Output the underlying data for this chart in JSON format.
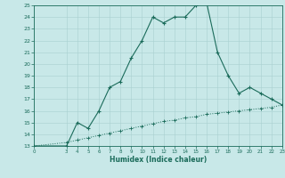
{
  "xlabel": "Humidex (Indice chaleur)",
  "background_color": "#c8e8e8",
  "grid_color": "#a8d0d0",
  "line_color": "#1a6b5a",
  "x_main": [
    0,
    3,
    4,
    5,
    6,
    7,
    8,
    9,
    10,
    11,
    12,
    13,
    14,
    15,
    16,
    17,
    18,
    19,
    20,
    21,
    22,
    23
  ],
  "y_main": [
    13,
    13,
    15,
    14.5,
    16,
    18,
    18.5,
    20.5,
    22,
    24,
    23.5,
    24,
    24,
    25,
    25.2,
    21,
    19,
    17.5,
    18,
    17.5,
    17,
    16.5
  ],
  "x_lower": [
    0,
    3,
    4,
    5,
    6,
    7,
    8,
    9,
    10,
    11,
    12,
    13,
    14,
    15,
    16,
    17,
    18,
    19,
    20,
    21,
    22,
    23
  ],
  "y_lower": [
    13,
    13.3,
    13.5,
    13.7,
    13.9,
    14.1,
    14.3,
    14.5,
    14.7,
    14.9,
    15.1,
    15.2,
    15.4,
    15.5,
    15.7,
    15.8,
    15.9,
    16.0,
    16.1,
    16.2,
    16.3,
    16.5
  ],
  "ylim": [
    13,
    25
  ],
  "xlim": [
    0,
    23
  ],
  "yticks": [
    13,
    14,
    15,
    16,
    17,
    18,
    19,
    20,
    21,
    22,
    23,
    24,
    25
  ],
  "xticks": [
    0,
    3,
    4,
    5,
    6,
    7,
    8,
    9,
    10,
    11,
    12,
    13,
    14,
    15,
    16,
    17,
    18,
    19,
    20,
    21,
    22,
    23
  ]
}
